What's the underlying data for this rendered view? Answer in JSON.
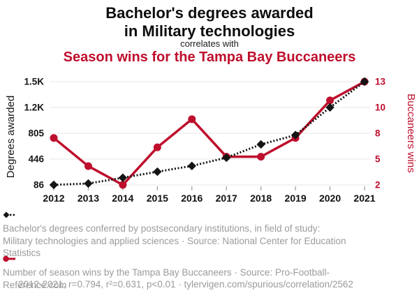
{
  "header": {
    "title_line1": "Bachelor's degrees awarded",
    "title_line2": "in Military technologies",
    "connector": "correlates with",
    "subtitle": "Season wins for the Tampa Bay Buccaneers"
  },
  "chart_data": {
    "type": "line",
    "x": [
      2012,
      2013,
      2014,
      2015,
      2016,
      2017,
      2018,
      2019,
      2020,
      2021
    ],
    "series": [
      {
        "name": "Degrees awarded",
        "axis": "left",
        "color": "#141414",
        "line_style": "dotted",
        "marker": "diamond",
        "values": [
          86,
          105,
          185,
          270,
          350,
          465,
          650,
          780,
          1165,
          1524
        ]
      },
      {
        "name": "Buccaneers wins",
        "axis": "right",
        "color": "#be0f2d",
        "line_style": "solid",
        "marker": "circle",
        "values": [
          7,
          4,
          2,
          6,
          9,
          5,
          5,
          7,
          11,
          13
        ]
      }
    ],
    "left_axis": {
      "label": "Degrees awarded",
      "min": 86,
      "max": 1524,
      "ticks": [
        {
          "value": 86,
          "label": "86"
        },
        {
          "value": 445.5,
          "label": "446"
        },
        {
          "value": 805,
          "label": "805"
        },
        {
          "value": 1164.5,
          "label": "1.2K"
        },
        {
          "value": 1524,
          "label": "1.5K"
        }
      ]
    },
    "right_axis": {
      "label": "Buccaneers wins",
      "min": 2,
      "max": 13,
      "ticks": [
        {
          "value": 2,
          "label": "2"
        },
        {
          "value": 4.75,
          "label": "5"
        },
        {
          "value": 7.5,
          "label": "8"
        },
        {
          "value": 10.25,
          "label": "10"
        },
        {
          "value": 13,
          "label": "13"
        }
      ]
    },
    "grid": true,
    "legend_position": "bottom"
  },
  "legend": {
    "degrees_text": "Bachelor's degrees conferred by postsecondary institutions, in field of study: Military technologies and applied sciences · Source: National Center for Education Statistics",
    "wins_text": "Number of season wins by the Tampa Bay Buccaneers · Source: Pro-Football-Reference.com"
  },
  "footer": "2012-2021, r=0.794, r²=0.631, p<0.01 · tylervigen.com/spurious/correlation/2562",
  "colors": {
    "accent_red": "#be0f2d",
    "series_black": "#141414",
    "legend_gray": "#9b9b9b",
    "gridline": "#ececec",
    "tick_mark": "#9b9b9b",
    "year_label": "#111111"
  }
}
